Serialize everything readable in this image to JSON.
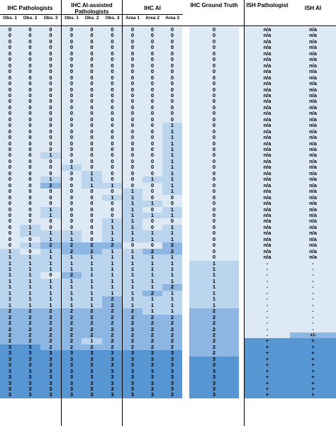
{
  "groups": {
    "ihc_pathologists": "IHC Pathologists",
    "ihc_ai_assisted": "IHC AI-assisted Pathologists",
    "ihc_ai": "IHC AI",
    "ihc_ground_truth": "IHC Ground Truth",
    "ish_pathologist": "ISH Pathologist",
    "ish_ai": "ISH AI"
  },
  "subheaders": [
    "Obs. 1",
    "Obs. 2",
    "Obs. 3",
    "Obs. 1",
    "Obs. 2",
    "Obs. 3",
    "Area 1",
    "Area 2",
    "Area 3"
  ],
  "colors": {
    "v0": "#dde9f5",
    "v1": "#bcd5ee",
    "v2": "#8db7e2",
    "v3": "#5896d3",
    "white": "#ffffff"
  },
  "rows": [
    [
      "0",
      "0",
      "0",
      "0",
      "0",
      "0",
      "0",
      "0",
      "0",
      "0",
      "n/a",
      "n/a"
    ],
    [
      "0",
      "0",
      "0",
      "0",
      "0",
      "0",
      "0",
      "0",
      "0",
      "0",
      "n/a",
      "n/a"
    ],
    [
      "0",
      "0",
      "0",
      "0",
      "0",
      "0",
      "0",
      "0",
      "0",
      "0",
      "n/a",
      "n/a"
    ],
    [
      "0",
      "0",
      "0",
      "0",
      "0",
      "0",
      "0",
      "0",
      "0",
      "0",
      "n/a",
      "n/a"
    ],
    [
      "0",
      "0",
      "0",
      "0",
      "0",
      "0",
      "0",
      "0",
      "0",
      "0",
      "n/a",
      "n/a"
    ],
    [
      "0",
      "0",
      "0",
      "0",
      "0",
      "0",
      "0",
      "0",
      "0",
      "0",
      "n/a",
      "n/a"
    ],
    [
      "0",
      "0",
      "0",
      "0",
      "0",
      "0",
      "0",
      "0",
      "0",
      "0",
      "n/a",
      "n/a"
    ],
    [
      "0",
      "0",
      "0",
      "0",
      "0",
      "0",
      "0",
      "0",
      "0",
      "0",
      "n/a",
      "n/a"
    ],
    [
      "0",
      "0",
      "0",
      "0",
      "0",
      "0",
      "0",
      "0",
      "0",
      "0",
      "n/a",
      "n/a"
    ],
    [
      "0",
      "0",
      "0",
      "0",
      "0",
      "0",
      "0",
      "0",
      "0",
      "0",
      "n/a",
      "n/a"
    ],
    [
      "0",
      "0",
      "0",
      "0",
      "0",
      "0",
      "0",
      "0",
      "0",
      "0",
      "n/a",
      "n/a"
    ],
    [
      "0",
      "0",
      "0",
      "0",
      "0",
      "0",
      "0",
      "0",
      "0",
      "0",
      "n/a",
      "n/a"
    ],
    [
      "0",
      "0",
      "0",
      "0",
      "0",
      "0",
      "0",
      "0",
      "0",
      "0",
      "n/a",
      "n/a"
    ],
    [
      "0",
      "0",
      "0",
      "0",
      "0",
      "0",
      "0",
      "0",
      "0",
      "0",
      "n/a",
      "n/a"
    ],
    [
      "0",
      "0",
      "0",
      "0",
      "0",
      "0",
      "0",
      "0",
      "0",
      "0",
      "n/a",
      "n/a"
    ],
    [
      "0",
      "0",
      "0",
      "0",
      "0",
      "0",
      "0",
      "0",
      "0",
      "0",
      "n/a",
      "n/a"
    ],
    [
      "0",
      "0",
      "0",
      "0",
      "0",
      "0",
      "0",
      "0",
      "1",
      "0",
      "n/a",
      "n/a"
    ],
    [
      "0",
      "0",
      "0",
      "0",
      "0",
      "0",
      "0",
      "0",
      "1",
      "0",
      "n/a",
      "n/a"
    ],
    [
      "0",
      "0",
      "0",
      "0",
      "0",
      "0",
      "0",
      "0",
      "1",
      "0",
      "n/a",
      "n/a"
    ],
    [
      "0",
      "0",
      "0",
      "0",
      "0",
      "0",
      "0",
      "0",
      "1",
      "0",
      "n/a",
      "n/a"
    ],
    [
      "0",
      "0",
      "0",
      "0",
      "0",
      "0",
      "0",
      "0",
      "1",
      "0",
      "n/a",
      "n/a"
    ],
    [
      "0",
      "0",
      "1",
      "0",
      "0",
      "0",
      "0",
      "0",
      "1",
      "0",
      "n/a",
      "n/a"
    ],
    [
      "0",
      "0",
      "0",
      "0",
      "0",
      "0",
      "0",
      "0",
      "1",
      "0",
      "n/a",
      "n/a"
    ],
    [
      "0",
      "0",
      "0",
      "1",
      "0",
      "0",
      "0",
      "0",
      "1",
      "0",
      "n/a",
      "n/a"
    ],
    [
      "0",
      "0",
      "0",
      "0",
      "1",
      "0",
      "0",
      "0",
      "1",
      "0",
      "n/a",
      "n/a"
    ],
    [
      "0",
      "0",
      "1",
      "0",
      "1",
      "0",
      "0",
      "1",
      "1",
      "0",
      "n/a",
      "n/a"
    ],
    [
      "0",
      "0",
      "2",
      "0",
      "1",
      "1",
      "0",
      "0",
      "1",
      "0",
      "n/a",
      "n/a"
    ],
    [
      "0",
      "0",
      "0",
      "0",
      "0",
      "0",
      "1",
      "0",
      "1",
      "0",
      "n/a",
      "n/a"
    ],
    [
      "0",
      "0",
      "0",
      "0",
      "0",
      "1",
      "1",
      "0",
      "0",
      "0",
      "n/a",
      "n/a"
    ],
    [
      "0",
      "0",
      "0",
      "0",
      "0",
      "0",
      "1",
      "1",
      "0",
      "0",
      "n/a",
      "n/a"
    ],
    [
      "0",
      "0",
      "1",
      "0",
      "0",
      "0",
      "1",
      "0",
      "1",
      "0",
      "n/a",
      "n/a"
    ],
    [
      "0",
      "0",
      "1",
      "0",
      "0",
      "0",
      "1",
      "1",
      "1",
      "0",
      "n/a",
      "n/a"
    ],
    [
      "0",
      "0",
      "0",
      "0",
      "0",
      "1",
      "1",
      "0",
      "0",
      "0",
      "n/a",
      "n/a"
    ],
    [
      "0",
      "1",
      "0",
      "0",
      "0",
      "1",
      "1",
      "0",
      "1",
      "0",
      "n/a",
      "n/a"
    ],
    [
      "0",
      "1",
      "1",
      "1",
      "0",
      "1",
      "1",
      "1",
      "1",
      "0",
      "n/a",
      "n/a"
    ],
    [
      "0",
      "0",
      "1",
      "1",
      "0",
      "1",
      "1",
      "1",
      "1",
      "0",
      "n/a",
      "n/a"
    ],
    [
      "0",
      "1",
      "2",
      "2",
      "2",
      "2",
      "0",
      "0",
      "2",
      "0",
      "n/a",
      "n/a"
    ],
    [
      "1",
      "0",
      "1",
      "2",
      "2",
      "1",
      "1",
      "2",
      "2",
      "0",
      "n/a",
      "n/a"
    ],
    [
      "1",
      "1",
      "1",
      "1",
      "1",
      "1",
      "1",
      "1",
      "1",
      "0",
      "n/a",
      "n/a"
    ],
    [
      "1",
      "1",
      "1",
      "1",
      "1",
      "1",
      "1",
      "1",
      "1",
      "1",
      "-",
      "-"
    ],
    [
      "1",
      "1",
      "1",
      "1",
      "1",
      "1",
      "1",
      "1",
      "1",
      "1",
      "-",
      "-"
    ],
    [
      "1",
      "1",
      "0",
      "2",
      "1",
      "1",
      "1",
      "1",
      "1",
      "1",
      "-",
      "-"
    ],
    [
      "1",
      "1",
      "1",
      "1",
      "1",
      "1",
      "1",
      "1",
      "1",
      "1",
      "-",
      "-"
    ],
    [
      "1",
      "1",
      "1",
      "1",
      "1",
      "1",
      "1",
      "1",
      "2",
      "1",
      "-",
      "-"
    ],
    [
      "1",
      "1",
      "1",
      "1",
      "1",
      "1",
      "1",
      "2",
      "1",
      "1",
      "-",
      "-"
    ],
    [
      "1",
      "1",
      "1",
      "1",
      "1",
      "2",
      "1",
      "1",
      "1",
      "1",
      "-",
      "-"
    ],
    [
      "1",
      "1",
      "1",
      "1",
      "1",
      "2",
      "1",
      "1",
      "1",
      "1",
      "-",
      "-"
    ],
    [
      "2",
      "2",
      "2",
      "2",
      "2",
      "2",
      "2",
      "1",
      "1",
      "2",
      "-",
      "-"
    ],
    [
      "2",
      "2",
      "2",
      "2",
      "2",
      "2",
      "2",
      "2",
      "2",
      "2",
      "-",
      "-"
    ],
    [
      "2",
      "2",
      "2",
      "2",
      "2",
      "2",
      "2",
      "2",
      "2",
      "2",
      "-",
      "-"
    ],
    [
      "2",
      "2",
      "2",
      "2",
      "2",
      "2",
      "2",
      "2",
      "2",
      "2",
      "-",
      "-"
    ],
    [
      "2",
      "2",
      "2",
      "2",
      "2",
      "2",
      "2",
      "2",
      "2",
      "2",
      "-",
      "+/-"
    ],
    [
      "2",
      "2",
      "2",
      "2",
      "1",
      "2",
      "2",
      "2",
      "2",
      "2",
      "+",
      "+"
    ],
    [
      "3",
      "3",
      "2",
      "2",
      "2",
      "2",
      "2",
      "2",
      "2",
      "2",
      "+",
      "+"
    ],
    [
      "3",
      "3",
      "3",
      "3",
      "3",
      "3",
      "3",
      "3",
      "3",
      "2",
      "+",
      "+"
    ],
    [
      "3",
      "3",
      "3",
      "3",
      "3",
      "3",
      "3",
      "3",
      "3",
      "3",
      "+",
      "+"
    ],
    [
      "3",
      "3",
      "3",
      "3",
      "3",
      "3",
      "3",
      "3",
      "3",
      "3",
      "+",
      "+"
    ],
    [
      "3",
      "3",
      "3",
      "3",
      "3",
      "3",
      "3",
      "3",
      "3",
      "3",
      "+",
      "+"
    ],
    [
      "3",
      "3",
      "3",
      "3",
      "3",
      "3",
      "3",
      "3",
      "3",
      "3",
      "+",
      "+"
    ],
    [
      "3",
      "3",
      "3",
      "3",
      "3",
      "3",
      "3",
      "3",
      "3",
      "3",
      "+",
      "+"
    ],
    [
      "3",
      "3",
      "3",
      "3",
      "3",
      "3",
      "3",
      "3",
      "3",
      "3",
      "+",
      "+"
    ],
    [
      "3",
      "3",
      "3",
      "3",
      "3",
      "3",
      "3",
      "3",
      "3",
      "3",
      "+",
      "+"
    ]
  ]
}
